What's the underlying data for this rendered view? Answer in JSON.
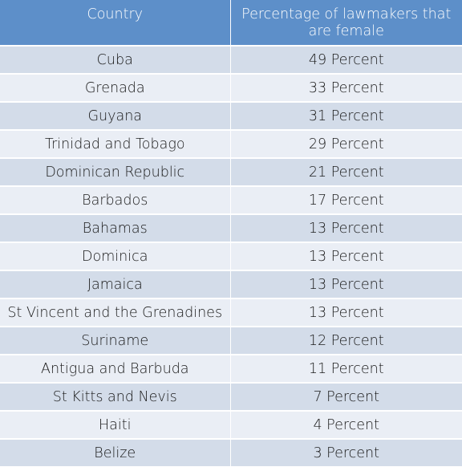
{
  "table": {
    "headers": {
      "country": "Country",
      "percentage": "Percentage of lawmakers that are female"
    },
    "rows": [
      {
        "country": "Cuba",
        "percentage": "49 Percent"
      },
      {
        "country": "Grenada",
        "percentage": "33 Percent"
      },
      {
        "country": "Guyana",
        "percentage": "31 Percent"
      },
      {
        "country": "Trinidad and Tobago",
        "percentage": "29 Percent"
      },
      {
        "country": "Dominican Republic",
        "percentage": "21 Percent"
      },
      {
        "country": "Barbados",
        "percentage": "17 Percent"
      },
      {
        "country": "Bahamas",
        "percentage": "13 Percent"
      },
      {
        "country": "Dominica",
        "percentage": "13 Percent"
      },
      {
        "country": "Jamaica",
        "percentage": "13 Percent"
      },
      {
        "country": "St Vincent and the Grenadines",
        "percentage": "13 Percent"
      },
      {
        "country": "Suriname",
        "percentage": "12 Percent"
      },
      {
        "country": "Antigua and Barbuda",
        "percentage": "11 Percent"
      },
      {
        "country": "St Kitts and Nevis",
        "percentage": "7 Percent"
      },
      {
        "country": "Haiti",
        "percentage": "4 Percent"
      },
      {
        "country": "Belize",
        "percentage": "3 Percent"
      }
    ]
  },
  "colors": {
    "header_bg": "#5d8fc9",
    "row_odd_bg": "#d3dce9",
    "row_even_bg": "#eaeef5"
  }
}
